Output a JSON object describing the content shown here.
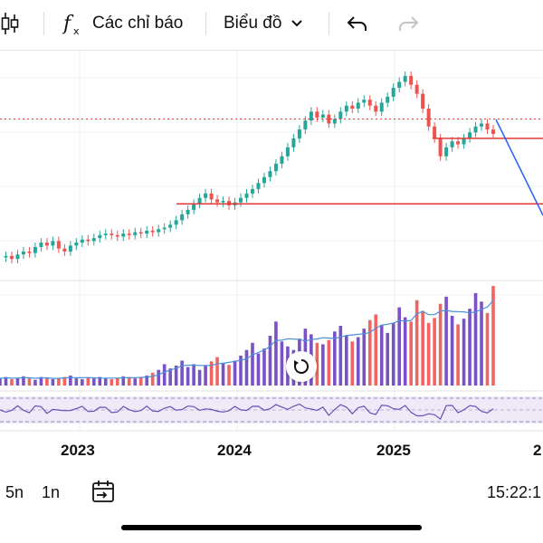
{
  "toolbar": {
    "chart_type_icon": "candlestick-icon",
    "indicators_icon": "fx-icon",
    "indicators_label": "Các chỉ báo",
    "chart_label": "Biểu đồ",
    "chart_dropdown_icon": "chevron-down-icon",
    "undo_icon": "undo-icon",
    "redo_icon": "redo-icon"
  },
  "chart_data": {
    "type": "candlestick",
    "x_axis_labels": [
      "2023",
      "2024",
      "2025",
      "2"
    ],
    "colors": {
      "up": "#26a69a",
      "down": "#ef5350",
      "volume_up": "#6a3fbf",
      "volume_down": "#ef5350",
      "support_line": "#e53935",
      "trend_line": "#2962ff",
      "oscillator": "#6a4fb3"
    },
    "price_series": [
      0.62,
      0.63,
      0.61,
      0.64,
      0.66,
      0.65,
      0.69,
      0.72,
      0.7,
      0.73,
      0.68,
      0.66,
      0.7,
      0.72,
      0.74,
      0.73,
      0.75,
      0.77,
      0.78,
      0.77,
      0.76,
      0.78,
      0.77,
      0.79,
      0.78,
      0.8,
      0.79,
      0.81,
      0.82,
      0.84,
      0.87,
      0.91,
      0.94,
      0.98,
      1.02,
      1.05,
      1.01,
      0.99,
      1.0,
      0.97,
      0.99,
      1.02,
      1.05,
      1.08,
      1.12,
      1.16,
      1.2,
      1.25,
      1.3,
      1.36,
      1.42,
      1.48,
      1.54,
      1.6,
      1.56,
      1.58,
      1.52,
      1.55,
      1.6,
      1.64,
      1.62,
      1.66,
      1.68,
      1.64,
      1.6,
      1.66,
      1.7,
      1.76,
      1.8,
      1.84,
      1.78,
      1.72,
      1.62,
      1.5,
      1.42,
      1.3,
      1.36,
      1.4,
      1.38,
      1.42,
      1.46,
      1.5,
      1.52,
      1.48,
      1.45
    ],
    "volume_series": [
      0.1,
      0.12,
      0.09,
      0.11,
      0.13,
      0.1,
      0.08,
      0.12,
      0.11,
      0.09,
      0.1,
      0.12,
      0.14,
      0.1,
      0.09,
      0.11,
      0.1,
      0.12,
      0.1,
      0.09,
      0.11,
      0.13,
      0.12,
      0.1,
      0.11,
      0.14,
      0.18,
      0.22,
      0.3,
      0.24,
      0.28,
      0.35,
      0.26,
      0.3,
      0.22,
      0.28,
      0.34,
      0.4,
      0.32,
      0.29,
      0.35,
      0.42,
      0.5,
      0.6,
      0.45,
      0.52,
      0.7,
      0.9,
      0.62,
      0.55,
      0.5,
      0.66,
      0.8,
      0.72,
      0.6,
      0.58,
      0.64,
      0.76,
      0.84,
      0.7,
      0.62,
      0.68,
      0.8,
      0.92,
      1.0,
      0.85,
      0.74,
      0.88,
      1.1,
      0.96,
      0.9,
      1.2,
      1.05,
      0.88,
      0.95,
      1.15,
      1.25,
      0.98,
      0.86,
      0.94,
      1.08,
      1.3,
      1.18,
      1.02,
      1.4
    ],
    "support_lines": [
      {
        "price": 0.98
      },
      {
        "price": 1.42
      }
    ],
    "dotted_line": {
      "price": 1.55
    }
  },
  "bottom": {
    "range_5n": "5n",
    "range_1n": "1n",
    "date_range_icon": "calendar-arrow-icon",
    "time": "15:22:1"
  },
  "reset_icon": "reset-icon"
}
